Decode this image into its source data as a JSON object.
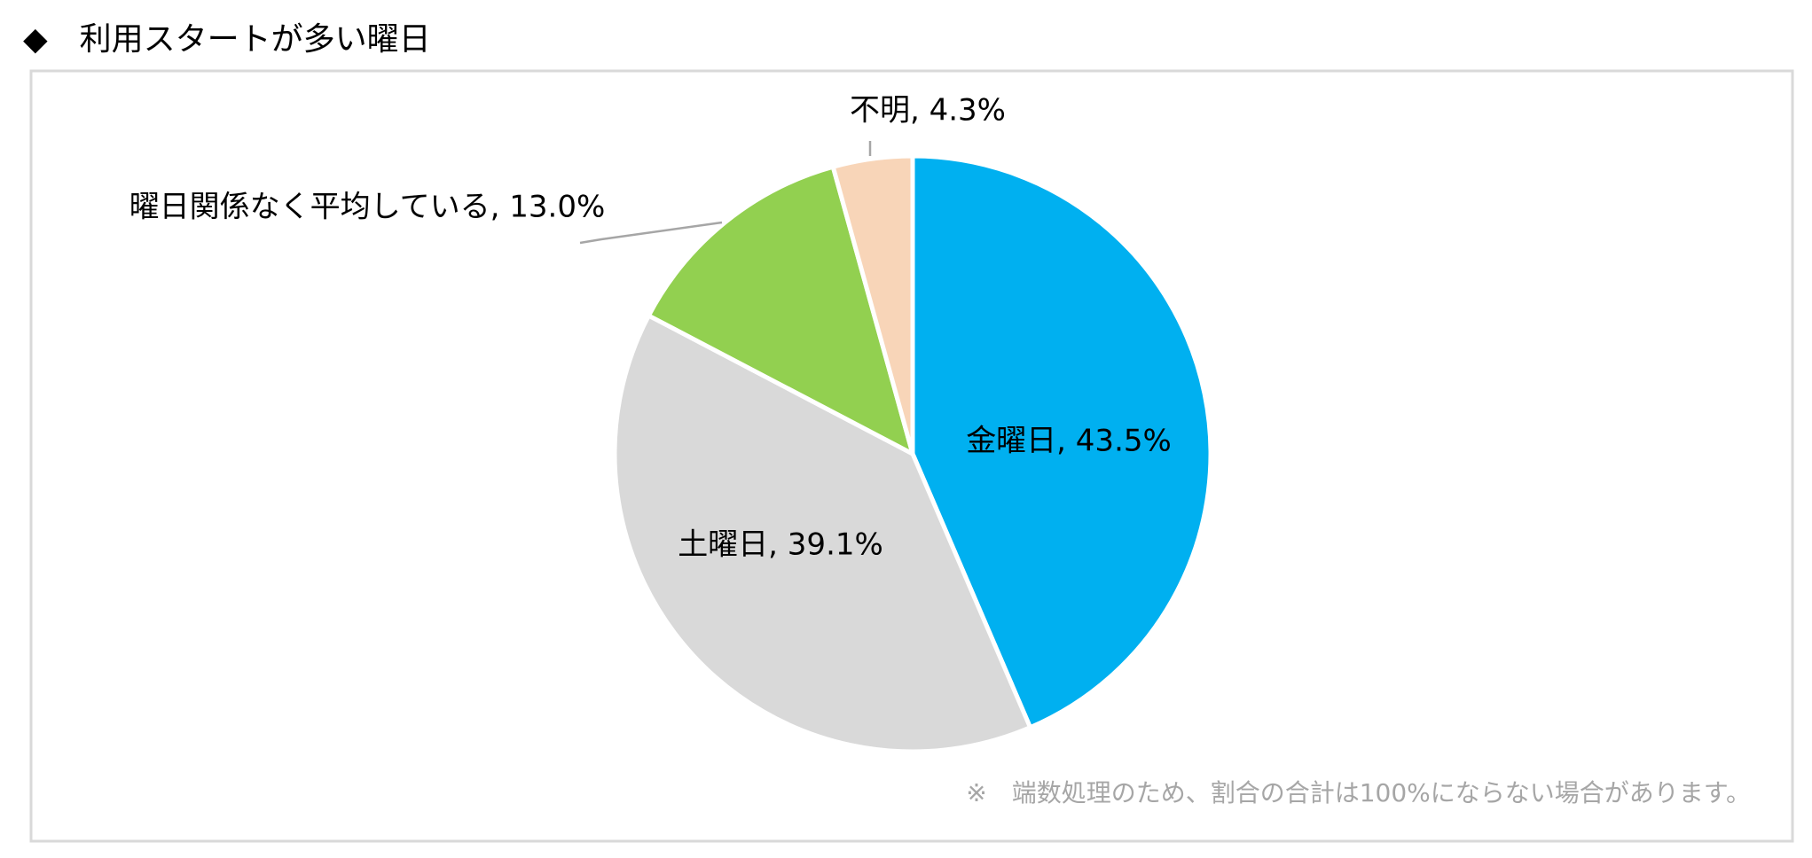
{
  "chart_data": {
    "type": "pie",
    "title": "◆　利用スタートが多い曜日",
    "values": [
      43.5,
      39.1,
      13.0,
      4.3
    ],
    "value_labels": [
      "金曜日, 43.5%",
      "土曜日, 39.1%",
      "曜日関係なく平均している, 13.0%",
      "不明, 4.3%"
    ],
    "colors": [
      "#00b0f0",
      "#d9d9d9",
      "#92d050",
      "#f8d5b8"
    ],
    "note": "※　端数処理のため、割合の合計は100%にならない場合があります。"
  }
}
